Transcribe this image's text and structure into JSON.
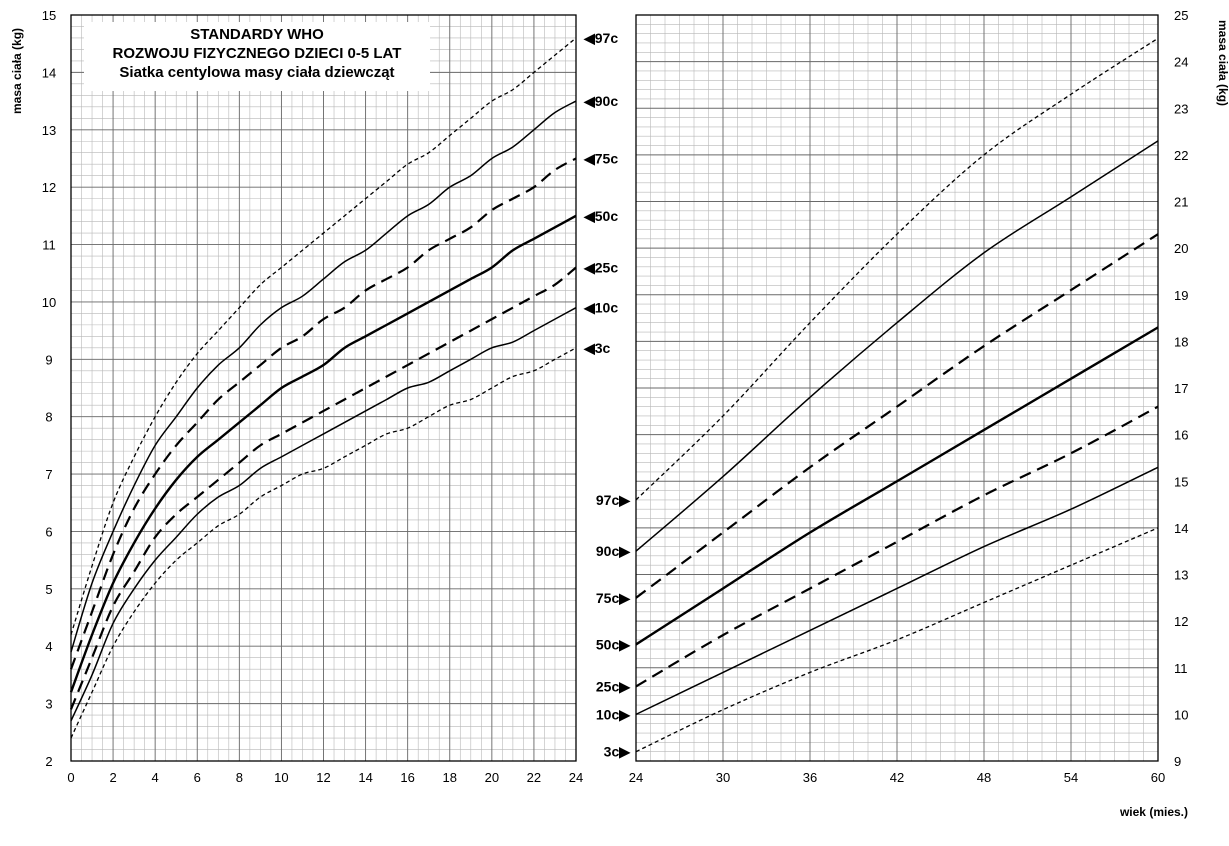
{
  "title": {
    "line1": "STANDARDY WHO",
    "line2": "ROZWOJU FIZYCZNEGO DZIECI 0-5 LAT",
    "line3": "Siatka centylowa  masy ciała dziewcząt"
  },
  "axis": {
    "ylabel_left": "masa ciała (kg)",
    "ylabel_right": "masa ciała (kg)",
    "xlabel": "wiek (mies.)"
  },
  "chart_data": [
    {
      "type": "line",
      "panel": "left",
      "xlim": [
        0,
        24
      ],
      "ylim": [
        2,
        15
      ],
      "x_ticks": [
        0,
        2,
        4,
        6,
        8,
        10,
        12,
        14,
        16,
        18,
        20,
        22,
        24
      ],
      "y_ticks": [
        2,
        3,
        4,
        5,
        6,
        7,
        8,
        9,
        10,
        11,
        12,
        13,
        14,
        15
      ],
      "x": [
        0,
        1,
        2,
        3,
        4,
        5,
        6,
        7,
        8,
        9,
        10,
        11,
        12,
        13,
        14,
        15,
        16,
        17,
        18,
        19,
        20,
        21,
        22,
        23,
        24
      ],
      "series": [
        {
          "name": "3c",
          "style": "dotted",
          "values": [
            2.4,
            3.2,
            4.0,
            4.6,
            5.1,
            5.5,
            5.8,
            6.1,
            6.3,
            6.6,
            6.8,
            7.0,
            7.1,
            7.3,
            7.5,
            7.7,
            7.8,
            8.0,
            8.2,
            8.3,
            8.5,
            8.7,
            8.8,
            9.0,
            9.2
          ]
        },
        {
          "name": "10c",
          "style": "solid",
          "values": [
            2.7,
            3.5,
            4.4,
            5.0,
            5.5,
            5.9,
            6.3,
            6.6,
            6.8,
            7.1,
            7.3,
            7.5,
            7.7,
            7.9,
            8.1,
            8.3,
            8.5,
            8.6,
            8.8,
            9.0,
            9.2,
            9.3,
            9.5,
            9.7,
            9.9
          ]
        },
        {
          "name": "25c",
          "style": "dashed",
          "values": [
            2.9,
            3.8,
            4.7,
            5.3,
            5.9,
            6.3,
            6.6,
            6.9,
            7.2,
            7.5,
            7.7,
            7.9,
            8.1,
            8.3,
            8.5,
            8.7,
            8.9,
            9.1,
            9.3,
            9.5,
            9.7,
            9.9,
            10.1,
            10.3,
            10.6
          ]
        },
        {
          "name": "50c",
          "style": "bold",
          "values": [
            3.2,
            4.2,
            5.1,
            5.8,
            6.4,
            6.9,
            7.3,
            7.6,
            7.9,
            8.2,
            8.5,
            8.7,
            8.9,
            9.2,
            9.4,
            9.6,
            9.8,
            10.0,
            10.2,
            10.4,
            10.6,
            10.9,
            11.1,
            11.3,
            11.5
          ]
        },
        {
          "name": "75c",
          "style": "dashed",
          "values": [
            3.6,
            4.6,
            5.6,
            6.4,
            7.0,
            7.5,
            7.9,
            8.3,
            8.6,
            8.9,
            9.2,
            9.4,
            9.7,
            9.9,
            10.2,
            10.4,
            10.6,
            10.9,
            11.1,
            11.3,
            11.6,
            11.8,
            12.0,
            12.3,
            12.5
          ]
        },
        {
          "name": "90c",
          "style": "solid",
          "values": [
            3.9,
            5.1,
            6.0,
            6.8,
            7.5,
            8.0,
            8.5,
            8.9,
            9.2,
            9.6,
            9.9,
            10.1,
            10.4,
            10.7,
            10.9,
            11.2,
            11.5,
            11.7,
            12.0,
            12.2,
            12.5,
            12.7,
            13.0,
            13.3,
            13.5
          ]
        },
        {
          "name": "97c",
          "style": "dotted",
          "values": [
            4.2,
            5.4,
            6.5,
            7.3,
            8.0,
            8.6,
            9.1,
            9.5,
            9.9,
            10.3,
            10.6,
            10.9,
            11.2,
            11.5,
            11.8,
            12.1,
            12.4,
            12.6,
            12.9,
            13.2,
            13.5,
            13.7,
            14.0,
            14.3,
            14.6
          ]
        }
      ]
    },
    {
      "type": "line",
      "panel": "right",
      "xlim": [
        24,
        60
      ],
      "ylim": [
        9,
        25
      ],
      "x_ticks": [
        24,
        30,
        36,
        42,
        48,
        54,
        60
      ],
      "y_ticks": [
        9,
        10,
        11,
        12,
        13,
        14,
        15,
        16,
        17,
        18,
        19,
        20,
        21,
        22,
        23,
        24,
        25
      ],
      "x": [
        24,
        30,
        36,
        42,
        48,
        54,
        60
      ],
      "series": [
        {
          "name": "3c",
          "style": "dotted",
          "values": [
            9.2,
            10.1,
            10.9,
            11.6,
            12.4,
            13.2,
            14.0
          ]
        },
        {
          "name": "10c",
          "style": "solid",
          "values": [
            10.0,
            10.9,
            11.8,
            12.7,
            13.6,
            14.4,
            15.3
          ]
        },
        {
          "name": "25c",
          "style": "dashed",
          "values": [
            10.6,
            11.7,
            12.7,
            13.7,
            14.7,
            15.6,
            16.6
          ]
        },
        {
          "name": "50c",
          "style": "bold",
          "values": [
            11.5,
            12.7,
            13.9,
            15.0,
            16.1,
            17.2,
            18.3
          ]
        },
        {
          "name": "75c",
          "style": "dashed",
          "values": [
            12.5,
            13.9,
            15.3,
            16.6,
            17.9,
            19.1,
            20.3
          ]
        },
        {
          "name": "90c",
          "style": "solid",
          "values": [
            13.5,
            15.1,
            16.8,
            18.4,
            19.9,
            21.1,
            22.3
          ]
        },
        {
          "name": "97c",
          "style": "dotted",
          "values": [
            14.6,
            16.4,
            18.4,
            20.3,
            22.0,
            23.3,
            24.5
          ]
        }
      ]
    }
  ]
}
